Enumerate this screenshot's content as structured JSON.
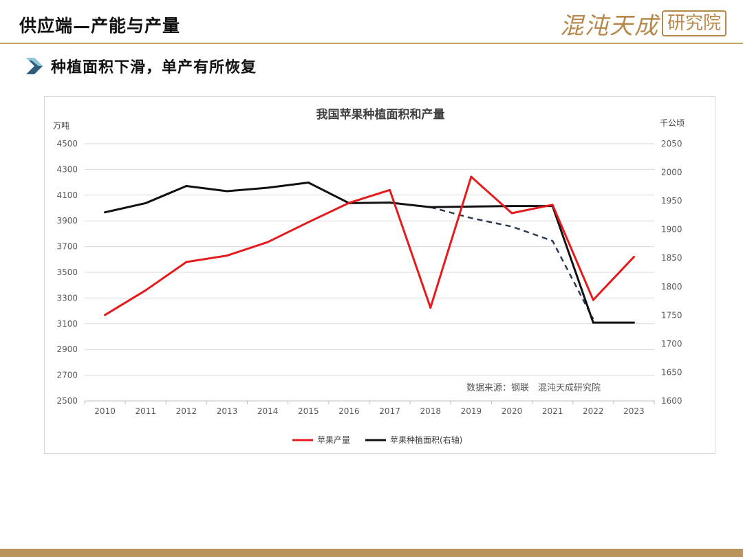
{
  "header": {
    "title": "供应端—产能与产量",
    "logo_part1": "混沌天成",
    "logo_part2": "研究院"
  },
  "subtitle": "种植面积下滑，单产有所恢复",
  "icons": {
    "subtitle_marker": "chevron-right-icon"
  },
  "colors": {
    "production": "#e41a1c",
    "area": "#111111",
    "forecast": "#2e3b55",
    "accent": "#c9a56a"
  },
  "chart_data": {
    "type": "line",
    "title": "我国苹果种植面积和产量",
    "left_axis_unit": "万吨",
    "right_axis_unit": "千公顷",
    "source_note": "数据来源：钢联　混沌天成研究院",
    "categories": [
      "2010",
      "2011",
      "2012",
      "2013",
      "2014",
      "2015",
      "2016",
      "2017",
      "2018",
      "2019",
      "2020",
      "2021",
      "2022",
      "2023"
    ],
    "left_ylim": [
      2500,
      4500
    ],
    "left_ticks": [
      2500,
      2700,
      2900,
      3100,
      3300,
      3500,
      3700,
      3900,
      4100,
      4300,
      4500
    ],
    "right_ylim": [
      1600,
      2050
    ],
    "right_ticks": [
      1600,
      1650,
      1700,
      1750,
      1800,
      1850,
      1900,
      1950,
      2000,
      2050
    ],
    "grid": true,
    "legend_position": "bottom",
    "series": [
      {
        "name": "苹果产量",
        "axis": "left",
        "values": [
          3168,
          3360,
          3580,
          3630,
          3735,
          3890,
          4040,
          4140,
          3225,
          4243,
          3960,
          4025,
          3285,
          3620
        ]
      },
      {
        "name": "苹果种植面积(右轴)",
        "axis": "right",
        "values": [
          1930,
          1946,
          1976,
          1967,
          1973,
          1982,
          1946,
          1947,
          1939,
          1940,
          1941,
          1941,
          1737,
          1737
        ]
      },
      {
        "name": "",
        "axis": "right",
        "style": "dashed",
        "x": [
          "2018",
          "2019",
          "2020",
          "2021",
          "2022"
        ],
        "values": [
          1939,
          1920,
          1905,
          1880,
          1743
        ]
      }
    ]
  }
}
